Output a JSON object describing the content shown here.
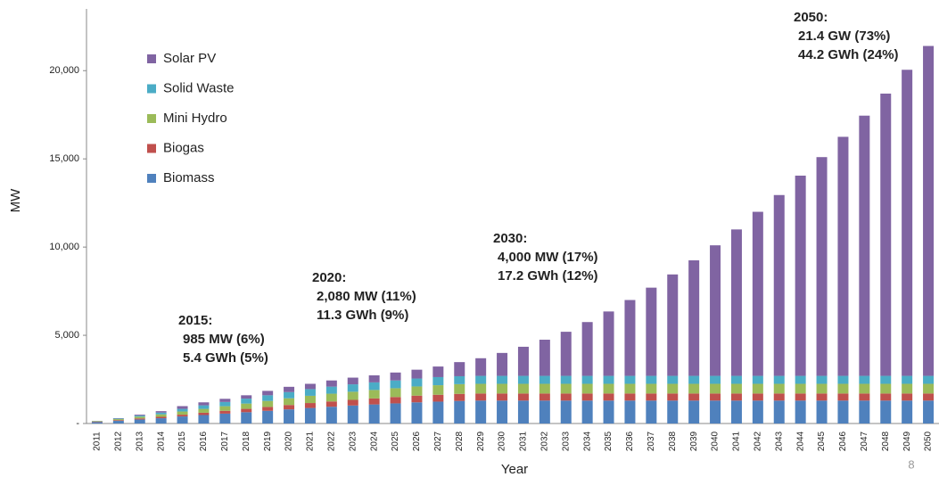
{
  "chart_data": {
    "type": "stacked_bar",
    "y_label": "MW",
    "x_label": "Year",
    "page_number": "8",
    "categories": [
      "2011",
      "2012",
      "2013",
      "2014",
      "2015",
      "2016",
      "2017",
      "2018",
      "2019",
      "2020",
      "2021",
      "2022",
      "2023",
      "2024",
      "2025",
      "2026",
      "2027",
      "2028",
      "2029",
      "2030",
      "2031",
      "2032",
      "2033",
      "2034",
      "2035",
      "2036",
      "2037",
      "2038",
      "2039",
      "2040",
      "2041",
      "2042",
      "2043",
      "2044",
      "2045",
      "2046",
      "2047",
      "2048",
      "2049",
      "2050"
    ],
    "series": [
      {
        "name": "Biomass",
        "color": "#4f81bd",
        "values": [
          80,
          150,
          230,
          300,
          400,
          480,
          560,
          640,
          720,
          800,
          880,
          950,
          1020,
          1080,
          1140,
          1200,
          1240,
          1280,
          1300,
          1300,
          1300,
          1300,
          1300,
          1300,
          1300,
          1300,
          1300,
          1300,
          1300,
          1300,
          1300,
          1300,
          1300,
          1300,
          1300,
          1300,
          1300,
          1300,
          1300,
          1300
        ]
      },
      {
        "name": "Biogas",
        "color": "#c0504d",
        "values": [
          20,
          40,
          60,
          80,
          100,
          130,
          160,
          190,
          220,
          250,
          280,
          300,
          320,
          340,
          360,
          380,
          390,
          400,
          400,
          400,
          400,
          400,
          400,
          400,
          400,
          400,
          400,
          400,
          400,
          400,
          400,
          400,
          400,
          400,
          400,
          400,
          400,
          400,
          400,
          400
        ]
      },
      {
        "name": "Mini Hydro",
        "color": "#9bbb59",
        "values": [
          30,
          60,
          100,
          140,
          180,
          220,
          260,
          300,
          340,
          380,
          410,
          440,
          460,
          480,
          500,
          520,
          540,
          550,
          550,
          550,
          550,
          550,
          550,
          550,
          550,
          550,
          550,
          550,
          550,
          550,
          550,
          550,
          550,
          550,
          550,
          550,
          550,
          550,
          550,
          550
        ]
      },
      {
        "name": "Solid Waste",
        "color": "#4bacc6",
        "values": [
          10,
          30,
          60,
          100,
          150,
          200,
          240,
          280,
          320,
          350,
          380,
          400,
          420,
          430,
          440,
          450,
          460,
          450,
          450,
          450,
          450,
          450,
          450,
          450,
          450,
          450,
          450,
          450,
          450,
          450,
          450,
          450,
          450,
          450,
          450,
          450,
          450,
          450,
          450,
          450
        ]
      },
      {
        "name": "Solar PV",
        "color": "#8064a2",
        "values": [
          10,
          20,
          50,
          80,
          155,
          170,
          180,
          190,
          250,
          300,
          300,
          350,
          380,
          400,
          450,
          500,
          600,
          800,
          1000,
          1300,
          1650,
          2050,
          2500,
          3050,
          3650,
          4300,
          5000,
          5750,
          6550,
          7400,
          8300,
          9300,
          10250,
          11350,
          12400,
          13550,
          14750,
          16000,
          17350,
          18700
        ]
      }
    ],
    "ylim": [
      0,
      23500
    ],
    "yticks": [
      {
        "value": 0,
        "label": "-"
      },
      {
        "value": 5000,
        "label": "5,000"
      },
      {
        "value": 10000,
        "label": "10,000"
      },
      {
        "value": 15000,
        "label": "15,000"
      },
      {
        "value": 20000,
        "label": "20,000"
      }
    ],
    "annotations": [
      {
        "title": "2015:",
        "lines": [
          "985 MW (6%)",
          "5.4 GWh (5%)"
        ]
      },
      {
        "title": "2020:",
        "lines": [
          "2,080 MW (11%)",
          "11.3 GWh (9%)"
        ]
      },
      {
        "title": "2030:",
        "lines": [
          "4,000 MW (17%)",
          "17.2 GWh (12%)"
        ]
      },
      {
        "title": "2050:",
        "lines": [
          "21.4 GW (73%)",
          "44.2 GWh (24%)"
        ]
      }
    ]
  }
}
